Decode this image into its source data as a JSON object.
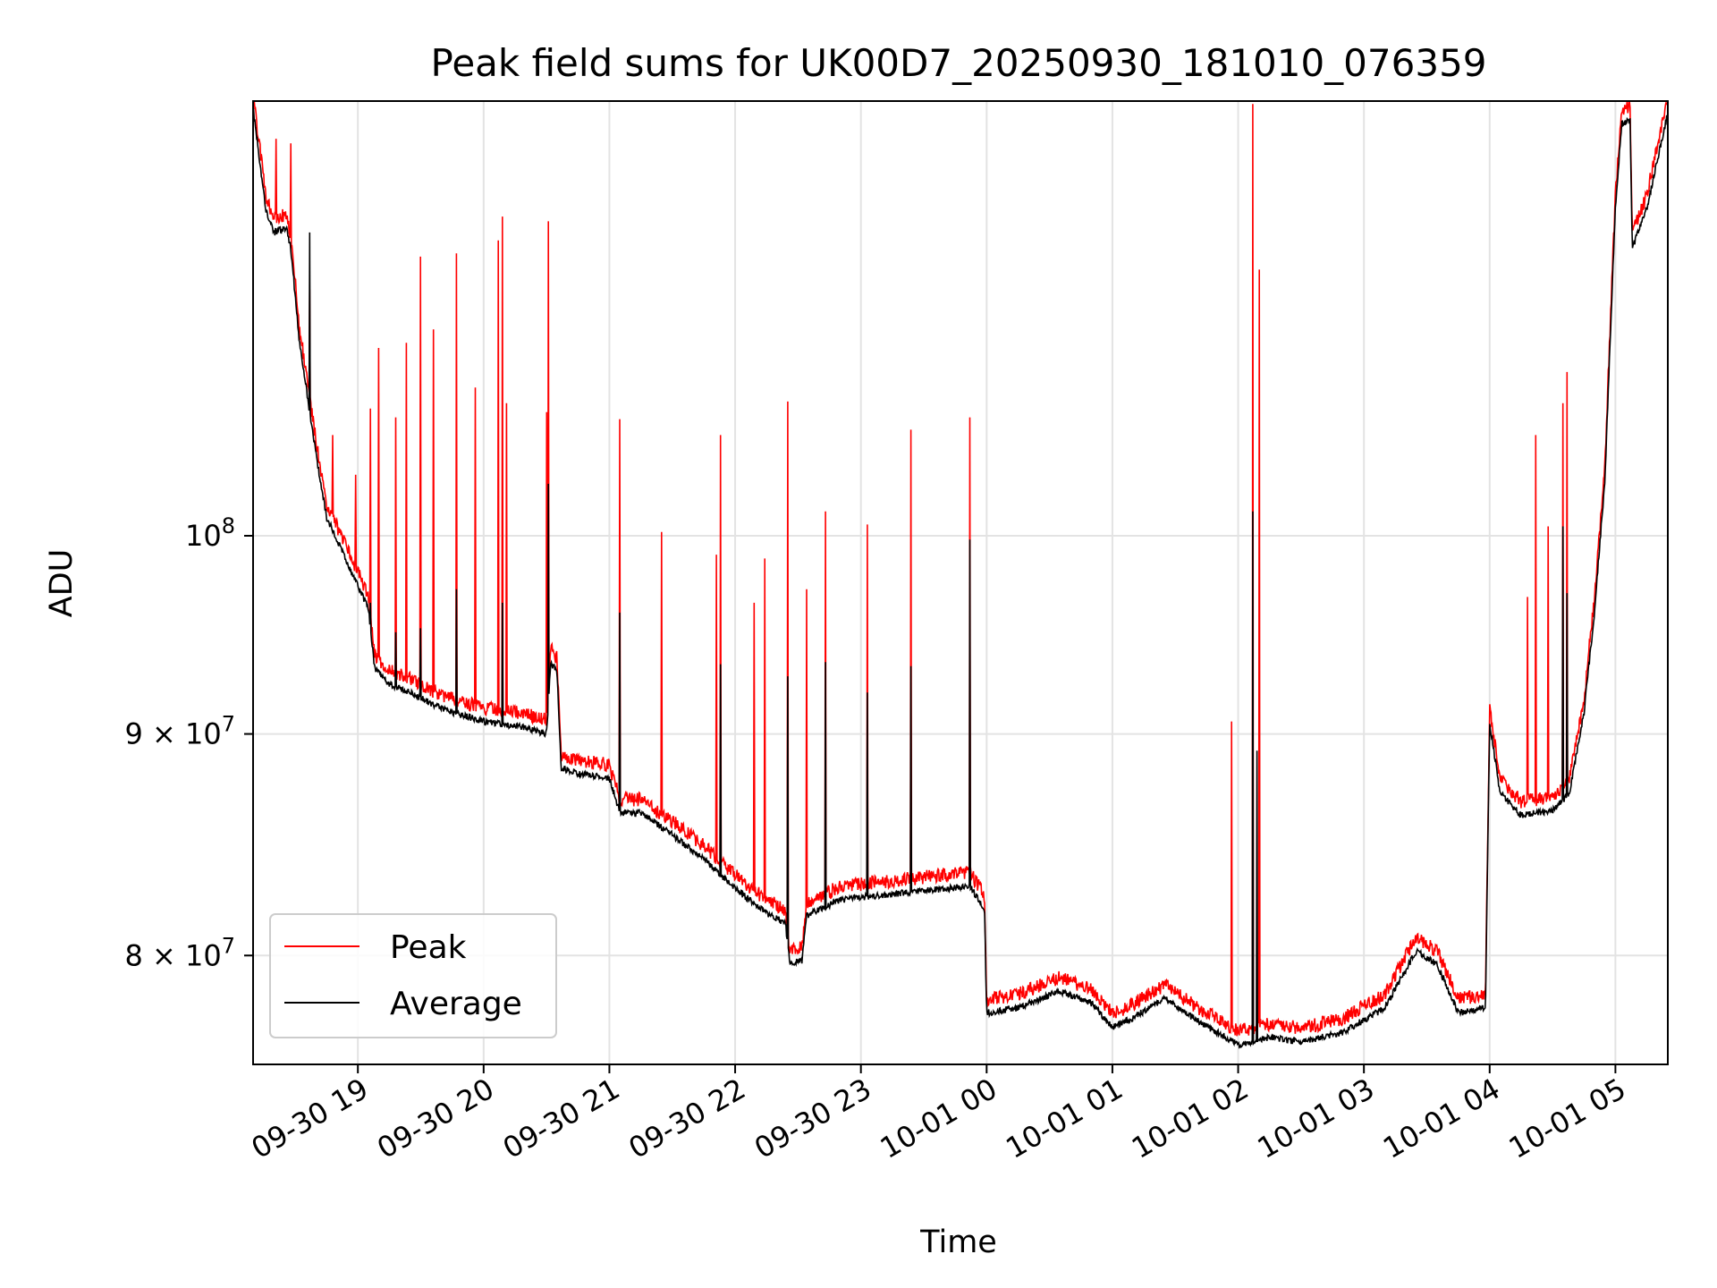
{
  "chart_data": {
    "type": "line",
    "title": "Peak field sums for UK00D7_20250930_181010_076359",
    "xlabel": "Time",
    "ylabel": "ADU",
    "y_scale": "log",
    "grid": true,
    "legend_position": "lower-left",
    "xlim": [
      "2025-09-30 18:10",
      "2025-10-01 05:25"
    ],
    "ylim": [
      75500000,
      126000000
    ],
    "x_ticks": [
      "09-30 19",
      "09-30 20",
      "09-30 21",
      "09-30 22",
      "09-30 23",
      "10-01 00",
      "10-01 01",
      "10-01 02",
      "10-01 03",
      "10-01 04",
      "10-01 05"
    ],
    "y_ticks": [
      {
        "value": 80000000,
        "mantissa": "8",
        "base": "10",
        "exp": "7"
      },
      {
        "value": 90000000,
        "mantissa": "9",
        "base": "10",
        "exp": "7"
      },
      {
        "value": 100000000,
        "mantissa": "",
        "base": "10",
        "exp": "8"
      }
    ],
    "series": [
      {
        "name": "Peak",
        "color": "#ff0000"
      },
      {
        "name": "Average",
        "color": "#000000"
      }
    ],
    "average_profile": [
      [
        "2025-09-30 18:10",
        125500000
      ],
      [
        "2025-09-30 18:16",
        119000000
      ],
      [
        "2025-09-30 18:20",
        117500000
      ],
      [
        "2025-09-30 18:26",
        117800000
      ],
      [
        "2025-09-30 18:28",
        116500000
      ],
      [
        "2025-09-30 18:32",
        111000000
      ],
      [
        "2025-09-30 18:38",
        106000000
      ],
      [
        "2025-09-30 18:42",
        103000000
      ],
      [
        "2025-09-30 18:45",
        101000000
      ],
      [
        "2025-09-30 18:50",
        99800000
      ],
      [
        "2025-09-30 18:55",
        98500000
      ],
      [
        "2025-09-30 19:00",
        97400000
      ],
      [
        "2025-09-30 19:05",
        96200000
      ],
      [
        "2025-09-30 19:08",
        93200000
      ],
      [
        "2025-09-30 19:15",
        92400000
      ],
      [
        "2025-09-30 19:25",
        92000000
      ],
      [
        "2025-09-30 19:40",
        91200000
      ],
      [
        "2025-09-30 20:00",
        90600000
      ],
      [
        "2025-09-30 20:20",
        90300000
      ],
      [
        "2025-09-30 20:30",
        90000000
      ],
      [
        "2025-09-30 20:32",
        93500000
      ],
      [
        "2025-09-30 20:35",
        93000000
      ],
      [
        "2025-09-30 20:37",
        88400000
      ],
      [
        "2025-09-30 20:45",
        88100000
      ],
      [
        "2025-09-30 21:00",
        87900000
      ],
      [
        "2025-09-30 21:05",
        86300000
      ],
      [
        "2025-09-30 21:15",
        86300000
      ],
      [
        "2025-09-30 21:30",
        85300000
      ],
      [
        "2025-09-30 21:45",
        84200000
      ],
      [
        "2025-09-30 22:00",
        82900000
      ],
      [
        "2025-09-30 22:15",
        81800000
      ],
      [
        "2025-09-30 22:24",
        81400000
      ],
      [
        "2025-09-30 22:26",
        79700000
      ],
      [
        "2025-09-30 22:32",
        79800000
      ],
      [
        "2025-09-30 22:34",
        81700000
      ],
      [
        "2025-09-30 22:50",
        82400000
      ],
      [
        "2025-09-30 23:30",
        82800000
      ],
      [
        "2025-09-30 23:52",
        83000000
      ],
      [
        "2025-09-30 23:57",
        82300000
      ],
      [
        "2025-09-30 23:59",
        81900000
      ],
      [
        "2025-10-01 00:00",
        77600000
      ],
      [
        "2025-10-01 00:15",
        77800000
      ],
      [
        "2025-10-01 00:35",
        78500000
      ],
      [
        "2025-10-01 00:50",
        78000000
      ],
      [
        "2025-10-01 01:00",
        77000000
      ],
      [
        "2025-10-01 01:10",
        77400000
      ],
      [
        "2025-10-01 01:25",
        78200000
      ],
      [
        "2025-10-01 01:40",
        77300000
      ],
      [
        "2025-10-01 02:00",
        76300000
      ],
      [
        "2025-10-01 02:15",
        76600000
      ],
      [
        "2025-10-01 02:30",
        76400000
      ],
      [
        "2025-10-01 02:50",
        76800000
      ],
      [
        "2025-10-01 03:10",
        77800000
      ],
      [
        "2025-10-01 03:25",
        80200000
      ],
      [
        "2025-10-01 03:35",
        79600000
      ],
      [
        "2025-10-01 03:45",
        77600000
      ],
      [
        "2025-10-01 03:58",
        77800000
      ],
      [
        "2025-10-01 04:00",
        90500000
      ],
      [
        "2025-10-01 04:05",
        87200000
      ],
      [
        "2025-10-01 04:15",
        86200000
      ],
      [
        "2025-10-01 04:30",
        86400000
      ],
      [
        "2025-10-01 04:38",
        87200000
      ],
      [
        "2025-10-01 04:45",
        91000000
      ],
      [
        "2025-10-01 04:50",
        96000000
      ],
      [
        "2025-10-01 04:55",
        103000000
      ],
      [
        "2025-10-01 05:00",
        119000000
      ],
      [
        "2025-10-01 05:03",
        124500000
      ],
      [
        "2025-10-01 05:07",
        124800000
      ],
      [
        "2025-10-01 05:08",
        116500000
      ],
      [
        "2025-10-01 05:15",
        119000000
      ],
      [
        "2025-10-01 05:25",
        125200000
      ]
    ],
    "peak_spikes": [
      [
        "2025-09-30 18:21",
        123500000
      ],
      [
        "2025-09-30 18:28",
        123200000
      ],
      [
        "2025-09-30 18:37",
        114000000
      ],
      [
        "2025-09-30 18:48",
        105500000
      ],
      [
        "2025-09-30 18:59",
        103300000
      ],
      [
        "2025-09-30 19:06",
        107000000
      ],
      [
        "2025-09-30 19:10",
        110500000
      ],
      [
        "2025-09-30 19:18",
        106500000
      ],
      [
        "2025-09-30 19:23",
        110800000
      ],
      [
        "2025-09-30 19:30",
        116000000
      ],
      [
        "2025-09-30 19:36",
        111600000
      ],
      [
        "2025-09-30 19:47",
        116200000
      ],
      [
        "2025-09-30 19:56",
        108200000
      ],
      [
        "2025-09-30 20:07",
        117000000
      ],
      [
        "2025-09-30 20:09",
        118500000
      ],
      [
        "2025-09-30 20:11",
        107300000
      ],
      [
        "2025-09-30 20:30",
        106800000
      ],
      [
        "2025-09-30 20:31",
        118200000
      ],
      [
        "2025-09-30 21:05",
        106400000
      ],
      [
        "2025-09-30 21:25",
        100200000
      ],
      [
        "2025-09-30 21:51",
        99000000
      ],
      [
        "2025-09-30 21:53",
        105500000
      ],
      [
        "2025-09-30 22:09",
        96500000
      ],
      [
        "2025-09-30 22:14",
        98800000
      ],
      [
        "2025-09-30 22:25",
        107400000
      ],
      [
        "2025-09-30 22:34",
        97200000
      ],
      [
        "2025-09-30 22:43",
        101300000
      ],
      [
        "2025-09-30 23:03",
        100600000
      ],
      [
        "2025-09-30 23:24",
        105800000
      ],
      [
        "2025-09-30 23:52",
        106500000
      ],
      [
        "2025-10-01 01:57",
        90600000
      ],
      [
        "2025-10-01 02:07",
        125800000
      ],
      [
        "2025-10-01 02:10",
        115200000
      ],
      [
        "2025-10-01 04:18",
        96800000
      ],
      [
        "2025-10-01 04:22",
        105500000
      ],
      [
        "2025-10-01 04:28",
        100500000
      ],
      [
        "2025-10-01 04:35",
        107300000
      ],
      [
        "2025-10-01 04:37",
        109100000
      ]
    ],
    "average_spikes": [
      [
        "2025-09-30 18:37",
        117500000
      ],
      [
        "2025-09-30 19:06",
        96500000
      ],
      [
        "2025-09-30 19:18",
        95000000
      ],
      [
        "2025-09-30 19:30",
        95200000
      ],
      [
        "2025-09-30 19:47",
        97200000
      ],
      [
        "2025-09-30 20:09",
        96500000
      ],
      [
        "2025-09-30 20:31",
        102800000
      ],
      [
        "2025-09-30 21:05",
        96000000
      ],
      [
        "2025-09-30 21:53",
        93400000
      ],
      [
        "2025-09-30 22:25",
        92800000
      ],
      [
        "2025-09-30 22:43",
        93500000
      ],
      [
        "2025-09-30 23:03",
        92000000
      ],
      [
        "2025-09-30 23:24",
        93300000
      ],
      [
        "2025-09-30 23:52",
        99800000
      ],
      [
        "2025-10-01 02:07",
        101300000
      ],
      [
        "2025-10-01 02:09",
        89200000
      ],
      [
        "2025-10-01 04:35",
        100500000
      ],
      [
        "2025-10-01 04:37",
        97000000
      ]
    ]
  }
}
